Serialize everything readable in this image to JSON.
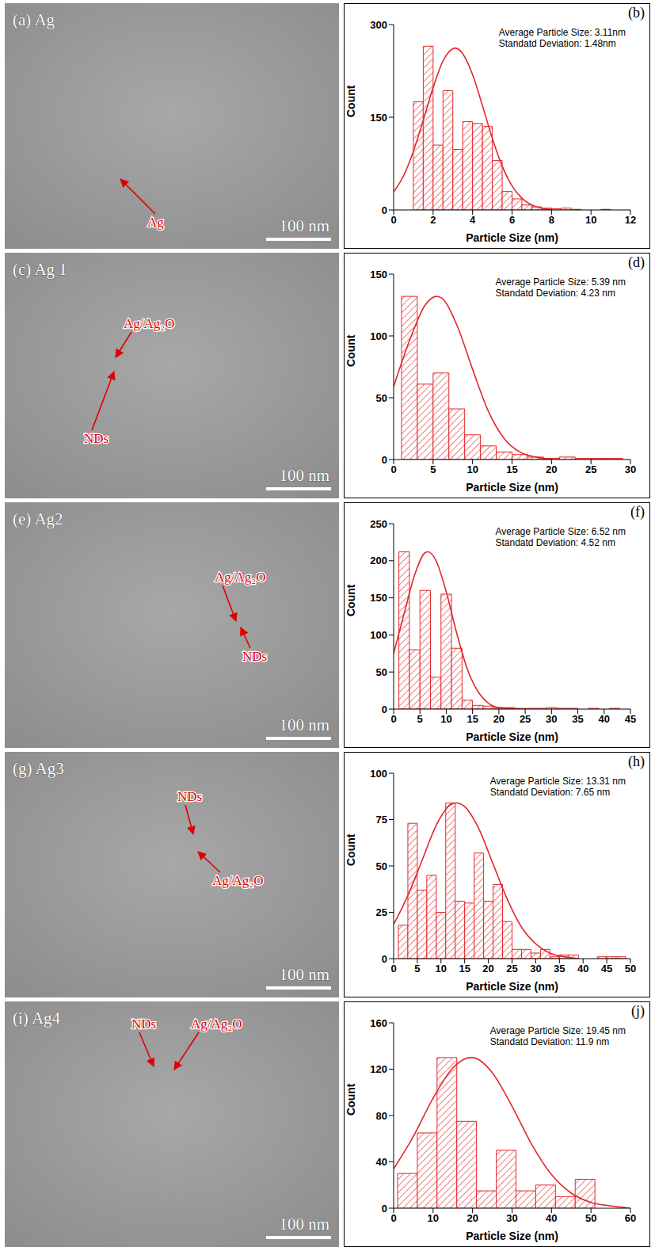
{
  "images": [
    {
      "label": "(a) Ag",
      "scale_bar": "100 nm",
      "annotations": [
        "Ag"
      ]
    },
    {
      "label": "(c) Ag 1",
      "scale_bar": "100 nm",
      "annotations": [
        "Ag/Ag₂O",
        "NDs"
      ]
    },
    {
      "label": "(e) Ag2",
      "scale_bar": "100 nm",
      "annotations": [
        "Ag/Ag₂O",
        "NDs"
      ]
    },
    {
      "label": "(g) Ag3",
      "scale_bar": "100 nm",
      "annotations": [
        "NDs",
        "Ag/Ag₂O"
      ]
    },
    {
      "label": "(i) Ag4",
      "scale_bar": "100 nm",
      "annotations": [
        "NDs",
        "Ag/Ag₂O"
      ]
    }
  ],
  "chart_data": [
    {
      "type": "histogram",
      "panel_label": "(b)",
      "x_label": "Particle Size (nm)",
      "y_label": "Count",
      "annotations": [
        "Average Particle Size: 3.11nm",
        "Standatd Deviation: 1.48nm"
      ],
      "bins": [
        1,
        1.5,
        2,
        2.5,
        3,
        3.5,
        4,
        4.5,
        5,
        5.5,
        6,
        6.5,
        7,
        7.5,
        8,
        8.5,
        9,
        9.5,
        10,
        10.5,
        11
      ],
      "counts": [
        175,
        265,
        105,
        193,
        98,
        143,
        140,
        135,
        80,
        30,
        18,
        8,
        5,
        3,
        2,
        3,
        1,
        0,
        0,
        1
      ],
      "fit_curve": {
        "x": [
          0,
          0.5,
          1,
          1.5,
          2,
          2.5,
          3,
          3.11,
          3.5,
          4,
          4.5,
          5,
          5.5,
          6,
          6.5,
          7,
          7.5,
          8
        ],
        "y": [
          29,
          55,
          95,
          145,
          198,
          241,
          261,
          262,
          253,
          219,
          169,
          116,
          71,
          39,
          19,
          8,
          3,
          1
        ]
      },
      "xlim": [
        0,
        12
      ],
      "xticks": [
        0,
        2,
        4,
        6,
        8,
        10,
        12
      ],
      "ylim": [
        0,
        300
      ],
      "yticks": [
        0,
        150,
        300
      ],
      "color": "#e3262a"
    },
    {
      "type": "histogram",
      "panel_label": "(d)",
      "x_label": "Particle Size (nm)",
      "y_label": "Count",
      "annotations": [
        "Average Particle Size: 5.39 nm",
        "Standatd Deviation: 4.23 nm"
      ],
      "bins": [
        1,
        3,
        5,
        7,
        9,
        11,
        13,
        15,
        17,
        19,
        21,
        23,
        25,
        27,
        29
      ],
      "counts": [
        132,
        61,
        70,
        41,
        20,
        11,
        6,
        4,
        2,
        1,
        2,
        1,
        1,
        1
      ],
      "fit_curve": {
        "x": [
          0,
          2,
          4,
          5.39,
          6,
          8,
          10,
          12,
          14,
          16,
          18,
          20
        ],
        "y": [
          59,
          96,
          125,
          132,
          131,
          109,
          73,
          39,
          17,
          6,
          2,
          0
        ]
      },
      "xlim": [
        0,
        30
      ],
      "xticks": [
        0,
        5,
        10,
        15,
        20,
        25,
        30
      ],
      "ylim": [
        0,
        150
      ],
      "yticks": [
        0,
        50,
        100,
        150
      ],
      "color": "#e3262a"
    },
    {
      "type": "histogram",
      "panel_label": "(f)",
      "x_label": "Particle Size (nm)",
      "y_label": "Count",
      "annotations": [
        "Average Particle Size: 6.52 nm",
        "Standatd Deviation: 4.52 nm"
      ],
      "bins": [
        1,
        3,
        5,
        7,
        9,
        11,
        13,
        15,
        17,
        19,
        21,
        23,
        25,
        27,
        29,
        31,
        33,
        35,
        37,
        39,
        41,
        43
      ],
      "counts": [
        212,
        80,
        160,
        43,
        155,
        82,
        12,
        5,
        4,
        2,
        2,
        1,
        1,
        1,
        2,
        1,
        1,
        0,
        1,
        0,
        1
      ],
      "fit_curve": {
        "x": [
          0,
          2,
          4,
          6,
          6.52,
          8,
          10,
          12,
          14,
          16,
          18,
          20,
          22,
          24
        ],
        "y": [
          75,
          129,
          181,
          211,
          212,
          201,
          158,
          102,
          54,
          24,
          8,
          2,
          1,
          0
        ]
      },
      "xlim": [
        0,
        45
      ],
      "xticks": [
        0,
        5,
        10,
        15,
        20,
        25,
        30,
        35,
        40,
        45
      ],
      "ylim": [
        0,
        250
      ],
      "yticks": [
        0,
        50,
        100,
        150,
        200,
        250
      ],
      "color": "#e3262a"
    },
    {
      "type": "histogram",
      "panel_label": "(h)",
      "x_label": "Particle Size (nm)",
      "y_label": "Count",
      "annotations": [
        "Average Particle Size: 13.31 nm",
        "Standatd Deviation: 7.65 nm"
      ],
      "bins": [
        1,
        3,
        5,
        7,
        9,
        11,
        13,
        15,
        17,
        19,
        21,
        23,
        25,
        27,
        29,
        31,
        33,
        35,
        37,
        39,
        41,
        43,
        45,
        47,
        49
      ],
      "counts": [
        18,
        73,
        37,
        45,
        25,
        84,
        31,
        30,
        57,
        31,
        40,
        20,
        5,
        5,
        3,
        5,
        1,
        2,
        2,
        0,
        0,
        1,
        1,
        1
      ],
      "fit_curve": {
        "x": [
          0,
          3,
          6,
          9,
          12,
          13.31,
          15,
          18,
          21,
          24,
          27,
          30,
          33,
          36,
          39
        ],
        "y": [
          18.5,
          34,
          53,
          72,
          83,
          84,
          82,
          70,
          51,
          32,
          17,
          8,
          3,
          1,
          0
        ]
      },
      "xlim": [
        0,
        50
      ],
      "xticks": [
        0,
        5,
        10,
        15,
        20,
        25,
        30,
        35,
        40,
        45,
        50
      ],
      "ylim": [
        0,
        100
      ],
      "yticks": [
        0,
        25,
        50,
        75,
        100
      ],
      "color": "#e3262a"
    },
    {
      "type": "histogram",
      "panel_label": "(j)",
      "x_label": "Particle Size (nm)",
      "y_label": "Count",
      "annotations": [
        "Average Particle Size: 19.45 nm",
        "Standatd Deviation: 11.9 nm"
      ],
      "bins": [
        1,
        6,
        11,
        16,
        21,
        26,
        31,
        36,
        41,
        46,
        51
      ],
      "counts": [
        30,
        65,
        130,
        75,
        15,
        50,
        15,
        20,
        10,
        25
      ],
      "fit_curve": {
        "x": [
          0,
          5,
          10,
          15,
          19.45,
          20,
          25,
          30,
          35,
          40,
          45,
          50,
          55,
          60
        ],
        "y": [
          34,
          62,
          95,
          121,
          130,
          130,
          117,
          88,
          55,
          29,
          13,
          5,
          2,
          0
        ]
      },
      "xlim": [
        0,
        60
      ],
      "xticks": [
        0,
        10,
        20,
        30,
        40,
        50,
        60
      ],
      "ylim": [
        0,
        160
      ],
      "yticks": [
        0,
        40,
        80,
        120,
        160
      ],
      "color": "#e3262a"
    }
  ]
}
